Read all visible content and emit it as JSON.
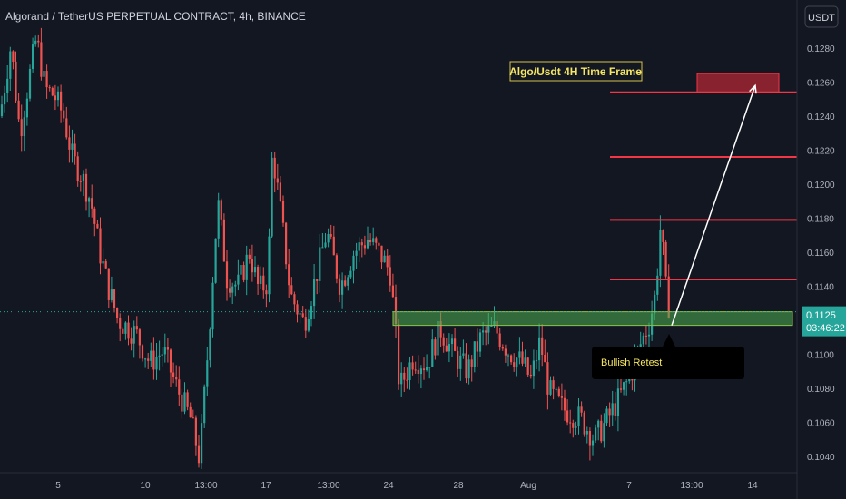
{
  "header": {
    "title": "Algorand / TetherUS PERPETUAL CONTRACT, 4h, BINANCE",
    "currency_button": "USDT"
  },
  "annotations": {
    "title_box": "Algo/Usdt 4H Time Frame",
    "callout": "Bullish Retest"
  },
  "price_scale": {
    "current_price": "0.1125",
    "countdown": "03:46:22"
  },
  "colors": {
    "background": "#131722",
    "bull": "#26a69a",
    "bear": "#ef5350",
    "level_line": "#f23645",
    "support_zone": "#4caf50",
    "target_box": "#9c2430",
    "title_box_border": "#d4c24a",
    "title_box_text": "#f5e663"
  },
  "chart_data": {
    "type": "candlestick",
    "y_axis": {
      "range": [
        0.1032,
        0.1304
      ],
      "ticks": [
        "0.1280",
        "0.1260",
        "0.1240",
        "0.1220",
        "0.1200",
        "0.1180",
        "0.1160",
        "0.1140",
        "0.1120",
        "0.1100",
        "0.1080",
        "0.1060",
        "0.1040"
      ]
    },
    "x_axis": {
      "ticks": [
        "5",
        "10",
        "13:00",
        "17",
        "13:00",
        "24",
        "28",
        "Aug",
        "7",
        "13:00",
        "14"
      ]
    },
    "levels": [
      {
        "label": "0.1254",
        "value": 0.1254
      },
      {
        "label": "0.1216",
        "value": 0.1216
      },
      {
        "label": "0.1179",
        "value": 0.1179
      },
      {
        "label": "0.1144",
        "value": 0.1144
      }
    ],
    "support_zone": {
      "low": 0.1117,
      "high": 0.1125
    },
    "target_zone": {
      "low": 0.1254,
      "high": 0.1265
    },
    "projection": {
      "from": 0.1117,
      "to": 0.1258
    },
    "current_price": 0.1125,
    "price_path": [
      [
        0,
        0.124
      ],
      [
        12,
        0.1282
      ],
      [
        22,
        0.123
      ],
      [
        32,
        0.1262
      ],
      [
        40,
        0.1286
      ],
      [
        50,
        0.1256
      ],
      [
        60,
        0.1252
      ],
      [
        70,
        0.124
      ],
      [
        80,
        0.1215
      ],
      [
        90,
        0.1205
      ],
      [
        100,
        0.119
      ],
      [
        110,
        0.116
      ],
      [
        120,
        0.1138
      ],
      [
        130,
        0.112
      ],
      [
        150,
        0.1112
      ],
      [
        165,
        0.1095
      ],
      [
        180,
        0.1102
      ],
      [
        195,
        0.108
      ],
      [
        210,
        0.1062
      ],
      [
        220,
        0.1038
      ],
      [
        230,
        0.111
      ],
      [
        240,
        0.119
      ],
      [
        250,
        0.1145
      ],
      [
        262,
        0.114
      ],
      [
        275,
        0.116
      ],
      [
        285,
        0.1138
      ],
      [
        295,
        0.1142
      ],
      [
        300,
        0.122
      ],
      [
        310,
        0.118
      ],
      [
        320,
        0.1135
      ],
      [
        335,
        0.1118
      ],
      [
        350,
        0.115
      ],
      [
        360,
        0.1172
      ],
      [
        375,
        0.114
      ],
      [
        390,
        0.116
      ],
      [
        405,
        0.1168
      ],
      [
        420,
        0.1158
      ],
      [
        430,
        0.1148
      ],
      [
        435,
        0.1118
      ],
      [
        440,
        0.108
      ],
      [
        455,
        0.1098
      ],
      [
        470,
        0.1094
      ],
      [
        485,
        0.1115
      ],
      [
        500,
        0.11
      ],
      [
        515,
        0.109
      ],
      [
        530,
        0.111
      ],
      [
        545,
        0.1115
      ],
      [
        560,
        0.1102
      ],
      [
        575,
        0.1095
      ],
      [
        585,
        0.1085
      ],
      [
        595,
        0.1108
      ],
      [
        605,
        0.1078
      ],
      [
        620,
        0.1068
      ],
      [
        640,
        0.1062
      ],
      [
        655,
        0.105
      ],
      [
        665,
        0.1058
      ],
      [
        680,
        0.1072
      ],
      [
        695,
        0.1088
      ],
      [
        705,
        0.1105
      ],
      [
        715,
        0.1118
      ],
      [
        722,
        0.1135
      ],
      [
        728,
        0.1178
      ],
      [
        733,
        0.114
      ],
      [
        738,
        0.1125
      ]
    ]
  }
}
